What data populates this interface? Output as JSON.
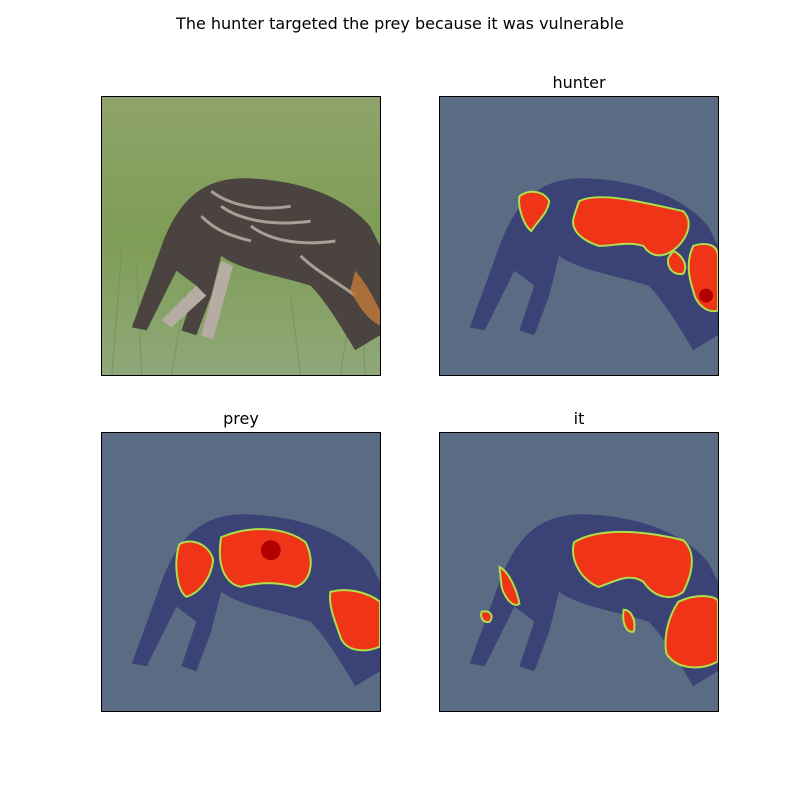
{
  "figure": {
    "suptitle": "The hunter targeted the prey because it was vulnerable",
    "panels": [
      {
        "title": "",
        "overlay": false
      },
      {
        "title": "hunter",
        "overlay": true
      },
      {
        "title": "prey",
        "overlay": true
      },
      {
        "title": "it",
        "overlay": true
      }
    ]
  },
  "colors": {
    "grass_light": "#8aa564",
    "grass_dark": "#5d7a3e",
    "animal_dark": "#3f3a38",
    "animal_light": "#b9aea4",
    "overlay_tint": "#3c4a9a",
    "heat_hot": "#e82a10",
    "heat_warm": "#ff7a00",
    "heat_edge": "#aee04a"
  }
}
